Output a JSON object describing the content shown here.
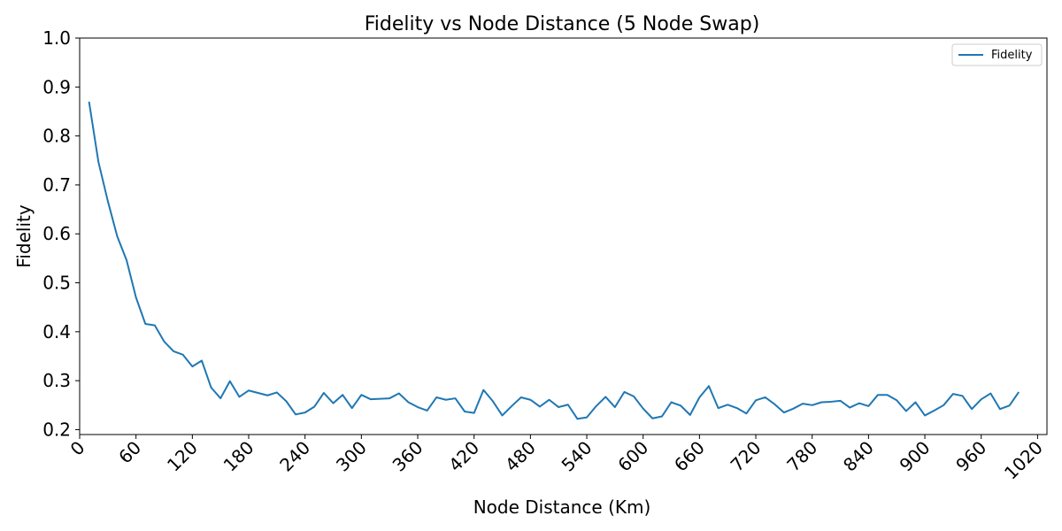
{
  "chart_data": {
    "type": "line",
    "title": "Fidelity vs Node Distance (5 Node Swap)",
    "xlabel": "Node Distance (Km)",
    "ylabel": "Fidelity",
    "xlim": [
      0,
      1030
    ],
    "ylim": [
      0.19,
      1.0
    ],
    "xticks": [
      0,
      60,
      120,
      180,
      240,
      300,
      360,
      420,
      480,
      540,
      600,
      660,
      720,
      780,
      840,
      900,
      960,
      1020
    ],
    "yticks": [
      0.2,
      0.3,
      0.4,
      0.5,
      0.6,
      0.7,
      0.8,
      0.9,
      1.0
    ],
    "grid": false,
    "legend_position": "top-right",
    "colors": {
      "series": "#1f77b4",
      "axis": "#000000"
    },
    "series": [
      {
        "name": "Fidelity",
        "x": [
          10,
          20,
          30,
          40,
          50,
          60,
          70,
          80,
          90,
          100,
          110,
          120,
          130,
          140,
          150,
          160,
          170,
          180,
          190,
          200,
          210,
          220,
          230,
          240,
          250,
          260,
          270,
          280,
          290,
          300,
          310,
          320,
          330,
          340,
          350,
          360,
          370,
          380,
          390,
          400,
          410,
          420,
          430,
          440,
          450,
          460,
          470,
          480,
          490,
          500,
          510,
          520,
          530,
          540,
          550,
          560,
          570,
          580,
          590,
          600,
          610,
          620,
          630,
          640,
          650,
          660,
          670,
          680,
          690,
          700,
          710,
          720,
          730,
          740,
          750,
          760,
          770,
          780,
          790,
          800,
          810,
          820,
          830,
          840,
          850,
          860,
          870,
          880,
          890,
          900,
          910,
          920,
          930,
          940,
          950,
          960,
          970,
          980,
          990,
          1000
        ],
        "values": [
          0.87,
          0.747,
          0.667,
          0.595,
          0.546,
          0.47,
          0.416,
          0.413,
          0.38,
          0.36,
          0.353,
          0.329,
          0.341,
          0.286,
          0.264,
          0.299,
          0.267,
          0.28,
          0.275,
          0.27,
          0.276,
          0.258,
          0.231,
          0.235,
          0.247,
          0.275,
          0.254,
          0.271,
          0.244,
          0.271,
          0.262,
          0.263,
          0.264,
          0.274,
          0.256,
          0.246,
          0.239,
          0.266,
          0.261,
          0.264,
          0.237,
          0.234,
          0.281,
          0.258,
          0.229,
          0.248,
          0.266,
          0.261,
          0.247,
          0.261,
          0.246,
          0.251,
          0.222,
          0.225,
          0.248,
          0.267,
          0.246,
          0.277,
          0.268,
          0.243,
          0.223,
          0.227,
          0.256,
          0.249,
          0.23,
          0.266,
          0.289,
          0.244,
          0.251,
          0.244,
          0.233,
          0.26,
          0.266,
          0.252,
          0.235,
          0.243,
          0.253,
          0.25,
          0.256,
          0.257,
          0.259,
          0.245,
          0.254,
          0.248,
          0.271,
          0.271,
          0.26,
          0.238,
          0.256,
          0.229,
          0.239,
          0.25,
          0.273,
          0.269,
          0.242,
          0.262,
          0.274,
          0.242,
          0.249,
          0.277
        ]
      }
    ]
  }
}
